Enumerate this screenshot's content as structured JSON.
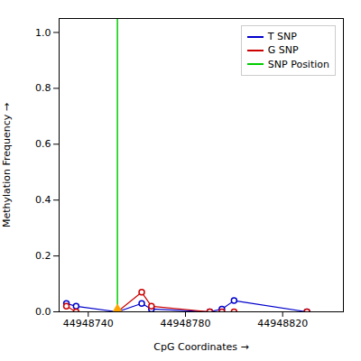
{
  "chart_data": {
    "type": "line",
    "xlabel": "CpG Coordinates",
    "ylabel": "Methylation Frequency",
    "x": [
      44948731,
      44948735,
      44948752,
      44948762,
      44948766,
      44948790,
      44948795,
      44948800,
      44948830
    ],
    "series": [
      {
        "name": "T SNP",
        "color": "#0000cc",
        "marker": "circle",
        "values": [
          0.03,
          0.02,
          0.0,
          0.03,
          0.01,
          0.0,
          0.01,
          0.04,
          0.0
        ]
      },
      {
        "name": "G SNP",
        "color": "#cc0000",
        "marker": "circle",
        "values": [
          0.02,
          0.0,
          0.0,
          0.07,
          0.02,
          0.0,
          0.0,
          0.0,
          0.0
        ]
      }
    ],
    "vline": {
      "name": "SNP Position",
      "x": 44948752,
      "color": "#00cc00"
    },
    "point_marker": {
      "x": 44948752,
      "y": 0.0,
      "color": "#FFA500",
      "marker": "triangle"
    },
    "xlim": [
      44948728,
      44948845
    ],
    "ylim": [
      0,
      1.05
    ],
    "xticks": [
      44948740,
      44948780,
      44948820
    ],
    "yticks": [
      {
        "value": 0,
        "label": "0.0"
      },
      0.2,
      0.4,
      0.6,
      0.8,
      {
        "value": 1,
        "label": "1.0"
      }
    ],
    "legend": "upper right"
  }
}
